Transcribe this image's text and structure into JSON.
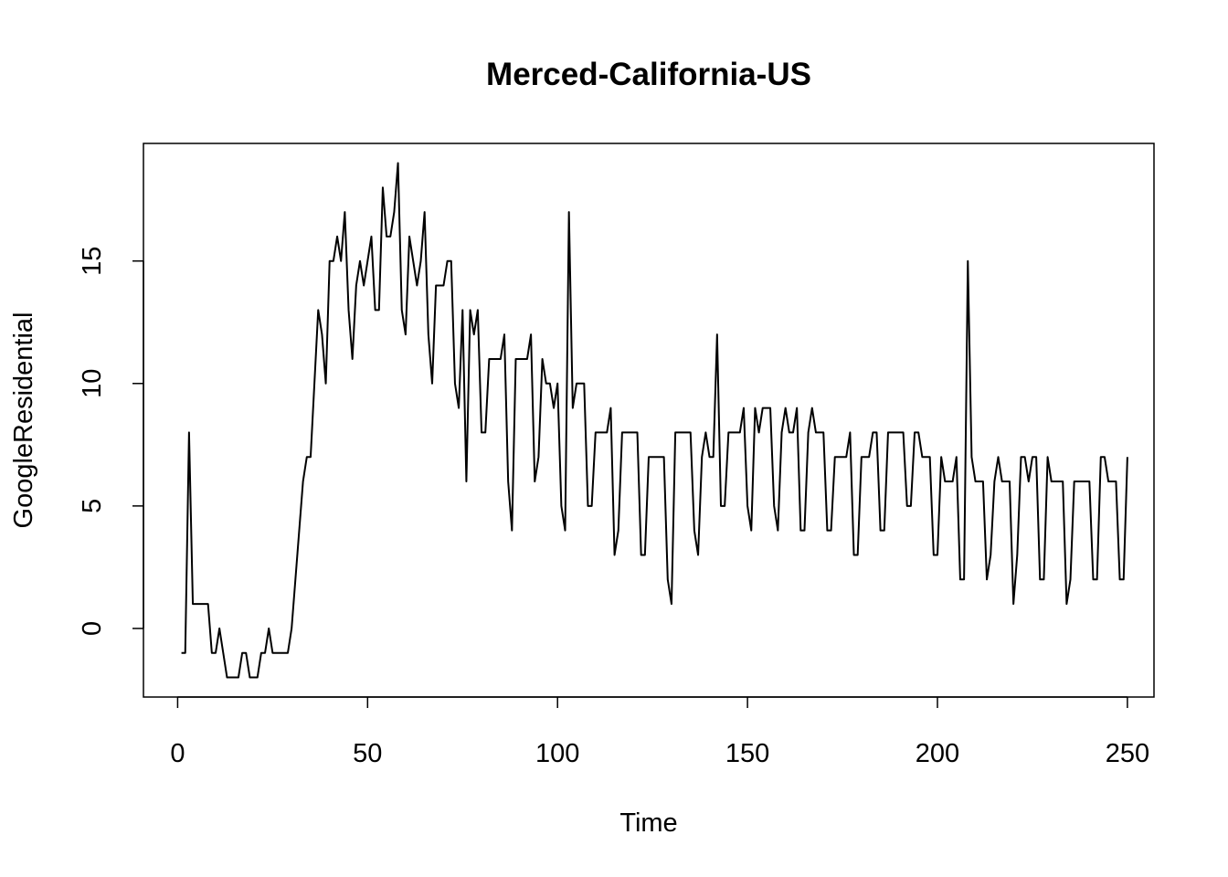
{
  "chart_data": {
    "type": "line",
    "title": "Merced-California-US",
    "xlabel": "Time",
    "ylabel": "GoogleResidential",
    "xlim": [
      -9,
      257
    ],
    "ylim": [
      -2.8,
      19.8
    ],
    "x_ticks": [
      0,
      50,
      100,
      150,
      200,
      250
    ],
    "y_ticks": [
      0,
      5,
      10,
      15
    ],
    "grid": false,
    "series": [
      {
        "values": [
          -1,
          -1,
          8,
          1,
          1,
          1,
          1,
          1,
          -1,
          -1,
          0,
          -1,
          -2,
          -2,
          -2,
          -2,
          -1,
          -1,
          -2,
          -2,
          -2,
          -1,
          -1,
          0,
          -1,
          -1,
          -1,
          -1,
          -1,
          0,
          2,
          4,
          6,
          7,
          7,
          10,
          13,
          12,
          10,
          15,
          15,
          16,
          15,
          17,
          13,
          11,
          14,
          15,
          14,
          15,
          16,
          13,
          13,
          18,
          16,
          16,
          17,
          19,
          13,
          12,
          16,
          15,
          14,
          15,
          17,
          12,
          10,
          14,
          14,
          14,
          15,
          15,
          10,
          9,
          13,
          6,
          13,
          12,
          13,
          8,
          8,
          11,
          11,
          11,
          11,
          12,
          6,
          4,
          11,
          11,
          11,
          11,
          12,
          6,
          7,
          11,
          10,
          10,
          9,
          10,
          5,
          4,
          17,
          9,
          10,
          10,
          10,
          5,
          5,
          8,
          8,
          8,
          8,
          9,
          3,
          4,
          8,
          8,
          8,
          8,
          8,
          3,
          3,
          7,
          7,
          7,
          7,
          7,
          2,
          1,
          8,
          8,
          8,
          8,
          8,
          4,
          3,
          7,
          8,
          7,
          7,
          12,
          5,
          5,
          8,
          8,
          8,
          8,
          9,
          5,
          4,
          9,
          8,
          9,
          9,
          9,
          5,
          4,
          8,
          9,
          8,
          8,
          9,
          4,
          4,
          8,
          9,
          8,
          8,
          8,
          4,
          4,
          7,
          7,
          7,
          7,
          8,
          3,
          3,
          7,
          7,
          7,
          8,
          8,
          4,
          4,
          8,
          8,
          8,
          8,
          8,
          5,
          5,
          8,
          8,
          7,
          7,
          7,
          3,
          3,
          7,
          6,
          6,
          6,
          7,
          2,
          2,
          15,
          7,
          6,
          6,
          6,
          2,
          3,
          6,
          7,
          6,
          6,
          6,
          1,
          3,
          7,
          7,
          6,
          7,
          7,
          2,
          2,
          7,
          6,
          6,
          6,
          6,
          1,
          2,
          6,
          6,
          6,
          6,
          6,
          2,
          2,
          7,
          7,
          6,
          6,
          6,
          2,
          2,
          7
        ]
      }
    ]
  }
}
